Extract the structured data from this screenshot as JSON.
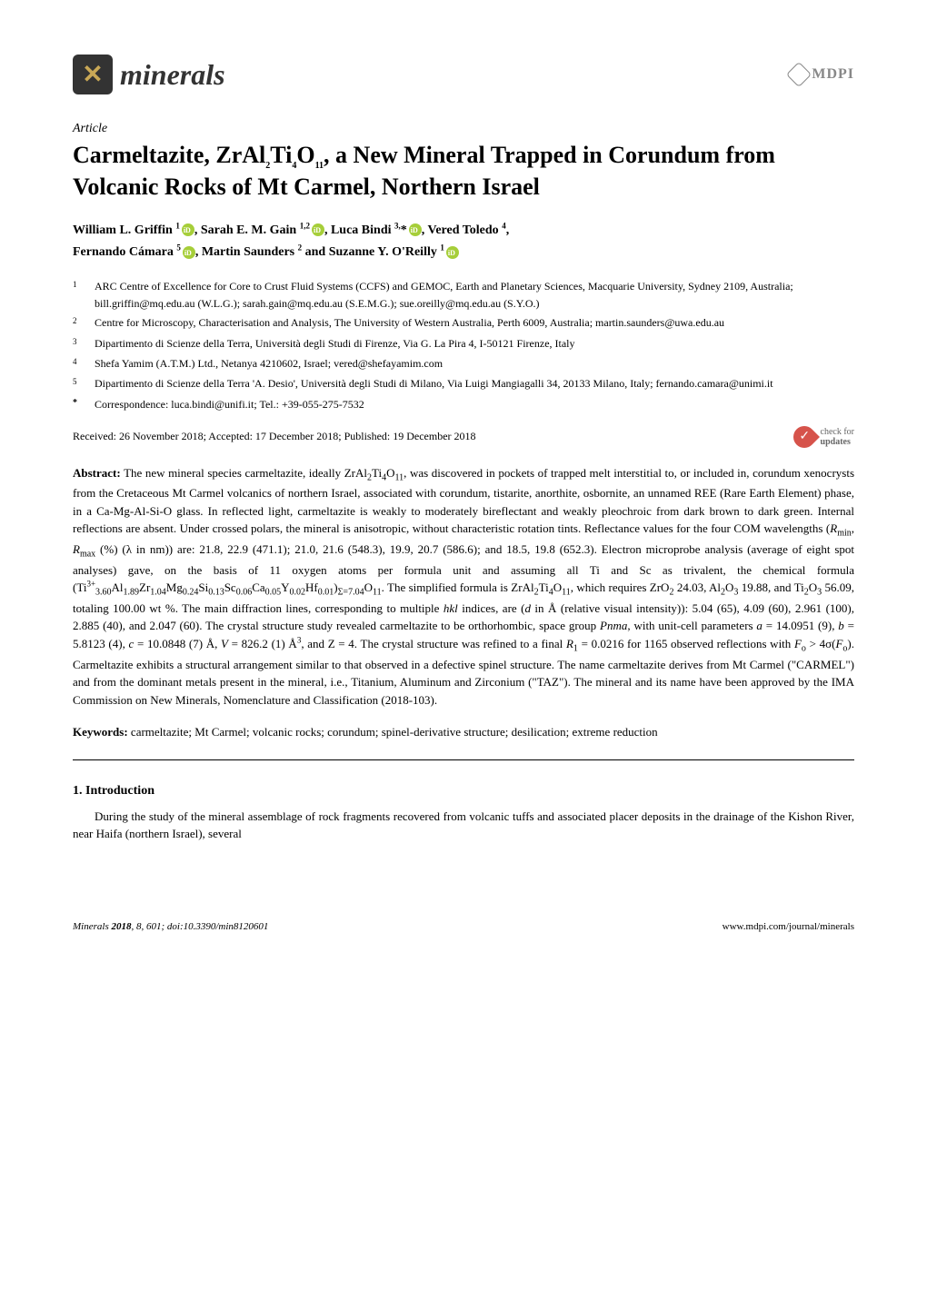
{
  "header": {
    "journal_name": "minerals",
    "publisher": "MDPI"
  },
  "article_label": "Article",
  "title": "Carmeltazite, ZrAl₂Ti₄O₁₁, a New Mineral Trapped in Corundum from Volcanic Rocks of Mt Carmel, Northern Israel",
  "authors_line1": "William L. Griffin ¹ 🄘, Sarah E. M. Gain ¹,² 🄘, Luca Bindi ³,* 🄘, Vered Toledo ⁴,",
  "authors_line2": "Fernando Cámara ⁵ 🄘, Martin Saunders ² and Suzanne Y. O'Reilly ¹ 🄘",
  "affiliations": [
    {
      "n": "1",
      "text": "ARC Centre of Excellence for Core to Crust Fluid Systems (CCFS) and GEMOC, Earth and Planetary Sciences, Macquarie University, Sydney 2109, Australia; bill.griffin@mq.edu.au (W.L.G.); sarah.gain@mq.edu.au (S.E.M.G.); sue.oreilly@mq.edu.au (S.Y.O.)"
    },
    {
      "n": "2",
      "text": "Centre for Microscopy, Characterisation and Analysis, The University of Western Australia, Perth 6009, Australia; martin.saunders@uwa.edu.au"
    },
    {
      "n": "3",
      "text": "Dipartimento di Scienze della Terra, Università degli Studi di Firenze, Via G. La Pira 4, I-50121 Firenze, Italy"
    },
    {
      "n": "4",
      "text": "Shefa Yamim (A.T.M.) Ltd., Netanya 4210602, Israel; vered@shefayamim.com"
    },
    {
      "n": "5",
      "text": "Dipartimento di Scienze della Terra 'A. Desio', Università degli Studi di Milano, Via Luigi Mangiagalli 34, 20133 Milano, Italy; fernando.camara@unimi.it"
    },
    {
      "n": "*",
      "text": "Correspondence: luca.bindi@unifi.it; Tel.: +39-055-275-7532"
    }
  ],
  "received": "Received: 26 November 2018; Accepted: 17 December 2018; Published: 19 December 2018",
  "updates_label": "check for\nupdates",
  "abstract_label": "Abstract:",
  "abstract": "The new mineral species carmeltazite, ideally ZrAl₂Ti₄O₁₁, was discovered in pockets of trapped melt interstitial to, or included in, corundum xenocrysts from the Cretaceous Mt Carmel volcanics of northern Israel, associated with corundum, tistarite, anorthite, osbornite, an unnamed REE (Rare Earth Element) phase, in a Ca-Mg-Al-Si-O glass. In reflected light, carmeltazite is weakly to moderately bireflectant and weakly pleochroic from dark brown to dark green. Internal reflections are absent. Under crossed polars, the mineral is anisotropic, without characteristic rotation tints. Reflectance values for the four COM wavelengths (Rmin, Rmax (%) (λ in nm)) are: 21.8, 22.9 (471.1); 21.0, 21.6 (548.3), 19.9, 20.7 (586.6); and 18.5, 19.8 (652.3). Electron microprobe analysis (average of eight spot analyses) gave, on the basis of 11 oxygen atoms per formula unit and assuming all Ti and Sc as trivalent, the chemical formula (Ti³⁺₃.₆₀Al₁.₈₉Zr₁.₀₄Mg₀.₂₄Si₀.₁₃Sc₀.₀₆Ca₀.₀₅Y₀.₀₂Hf₀.₀₁)Σ=7.04O₁₁. The simplified formula is ZrAl₂Ti₄O₁₁, which requires ZrO₂ 24.03, Al₂O₃ 19.88, and Ti₂O₃ 56.09, totaling 100.00 wt %. The main diffraction lines, corresponding to multiple hkl indices, are (d in Å (relative visual intensity)): 5.04 (65), 4.09 (60), 2.961 (100), 2.885 (40), and 2.047 (60). The crystal structure study revealed carmeltazite to be orthorhombic, space group Pnma, with unit-cell parameters a = 14.0951 (9), b = 5.8123 (4), c = 10.0848 (7) Å, V = 826.2 (1) Å³, and Z = 4. The crystal structure was refined to a final R₁ = 0.0216 for 1165 observed reflections with Fo > 4σ(Fo). Carmeltazite exhibits a structural arrangement similar to that observed in a defective spinel structure. The name carmeltazite derives from Mt Carmel (\"CARMEL\") and from the dominant metals present in the mineral, i.e., Titanium, Aluminum and Zirconium (\"TAZ\"). The mineral and its name have been approved by the IMA Commission on New Minerals, Nomenclature and Classification (2018-103).",
  "keywords_label": "Keywords:",
  "keywords": "carmeltazite; Mt Carmel; volcanic rocks; corundum; spinel-derivative structure; desilication; extreme reduction",
  "section1_heading": "1. Introduction",
  "section1_body": "During the study of the mineral assemblage of rock fragments recovered from volcanic tuffs and associated placer deposits in the drainage of the Kishon River, near Haifa (northern Israel), several",
  "footer": {
    "left_journal": "Minerals",
    "left_year": "2018",
    "left_vol": "8",
    "left_page": "601",
    "left_doi": "doi:10.3390/min8120601",
    "right": "www.mdpi.com/journal/minerals"
  },
  "colors": {
    "orcid_green": "#A6CE39",
    "updates_red": "#d6534b",
    "logo_gold": "#c9a856",
    "logo_bg": "#333333",
    "mdpi_gray": "#888888",
    "text": "#000000",
    "background": "#ffffff"
  },
  "typography": {
    "title_fontsize": 26,
    "body_fontsize": 13,
    "affil_fontsize": 12,
    "footer_fontsize": 11,
    "font_family": "Palatino Linotype"
  }
}
